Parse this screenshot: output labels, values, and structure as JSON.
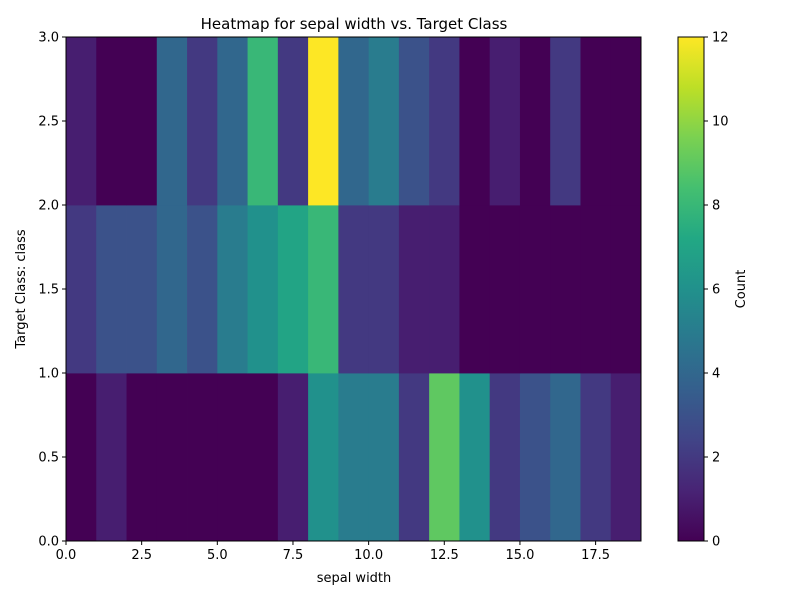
{
  "chart_data": {
    "type": "heatmap",
    "title": "Heatmap for sepal width vs. Target Class",
    "xlabel": "sepal width",
    "ylabel": "Target Class: class",
    "xlim": [
      0,
      19
    ],
    "ylim": [
      0,
      3
    ],
    "x_edges": [
      0,
      1,
      2,
      3,
      4,
      5,
      6,
      7,
      8,
      9,
      10,
      11,
      12,
      13,
      14,
      15,
      16,
      17,
      18,
      19
    ],
    "y_edges": [
      0,
      1,
      2,
      3
    ],
    "x_ticks": [
      "0.0",
      "2.5",
      "5.0",
      "7.5",
      "10.0",
      "12.5",
      "15.0",
      "17.5"
    ],
    "x_tick_values": [
      0,
      2.5,
      5,
      7.5,
      10,
      12.5,
      15,
      17.5
    ],
    "y_ticks": [
      "0.0",
      "0.5",
      "1.0",
      "1.5",
      "2.0",
      "2.5",
      "3.0"
    ],
    "y_tick_values": [
      0,
      0.5,
      1,
      1.5,
      2,
      2.5,
      3
    ],
    "counts": [
      [
        0,
        1,
        0,
        0,
        0,
        0,
        0,
        1,
        6,
        5,
        5,
        2,
        9,
        6,
        2,
        3,
        4,
        2,
        1
      ],
      [
        2,
        3,
        3,
        4,
        3,
        5,
        6,
        7,
        8,
        2,
        2,
        1,
        1,
        0,
        0,
        0,
        0,
        0,
        0
      ],
      [
        1,
        0,
        0,
        4,
        2,
        4,
        8,
        2,
        12,
        4,
        5,
        3,
        2,
        0,
        1,
        0,
        2,
        0,
        0
      ]
    ],
    "colorbar": {
      "label": "Count",
      "min": 0,
      "max": 12,
      "ticks": [
        "0",
        "2",
        "4",
        "6",
        "8",
        "10",
        "12"
      ],
      "tick_values": [
        0,
        2,
        4,
        6,
        8,
        10,
        12
      ]
    },
    "colormap": "viridis"
  }
}
